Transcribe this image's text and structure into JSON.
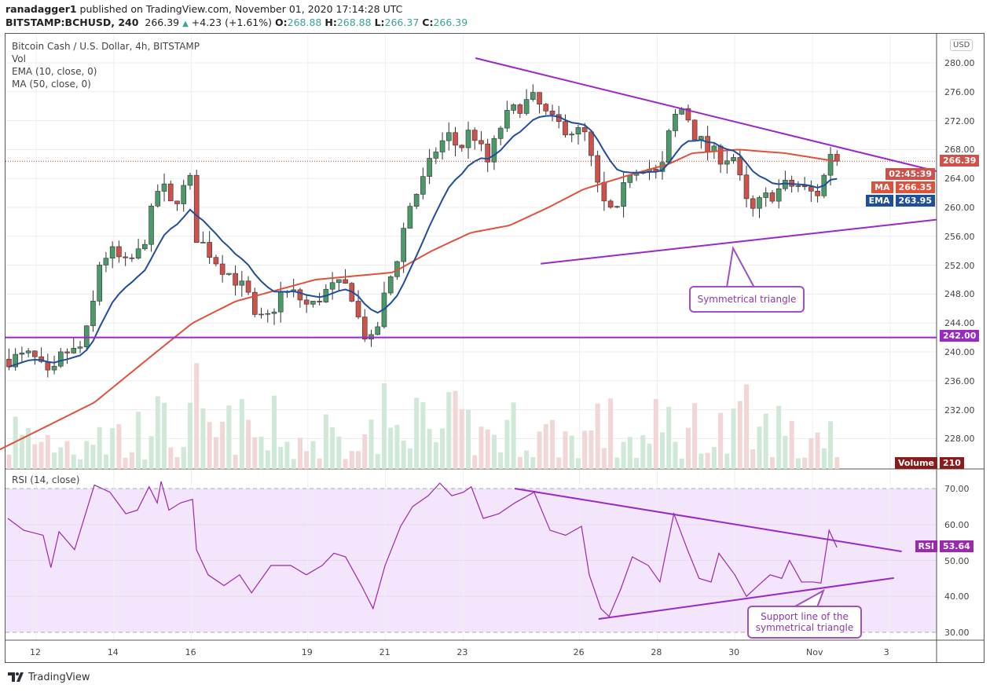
{
  "header": {
    "publisher": "ranadagger1",
    "published_text": "published on TradingView.com, November 01, 2020 17:14:28 UTC",
    "symbol": "BITSTAMP:BCHUSD, 240",
    "last": "266.39",
    "change": "+4.23 (+1.61%)",
    "o_label": "O:",
    "o": "268.88",
    "h_label": "H:",
    "h": "268.88",
    "l_label": "L:",
    "l": "266.37",
    "c_label": "C:",
    "c": "266.39"
  },
  "legend": [
    "Bitcoin Cash / U.S. Dollar, 4h, BITSTAMP",
    "Vol",
    "EMA (10, close, 0)",
    "MA (50, close, 0)"
  ],
  "rsi_legend": "RSI (14, close)",
  "currency": "USD",
  "labels": {
    "price": "266.39",
    "countdown": "02:45:39",
    "ma_name": "MA",
    "ma": "266.35",
    "ema_name": "EMA",
    "ema": "263.95",
    "support": "242.00",
    "vol_name": "Volume",
    "vol": "210",
    "rsi_name": "RSI",
    "rsi": "53.64"
  },
  "annotations": {
    "triangle": "Symmetrical triangle",
    "support_line": "Support line of the symmetrical triangle"
  },
  "footer": {
    "brand": "TradingView"
  },
  "colors": {
    "up": "#4a9a6a",
    "down": "#d0504a",
    "ema": "#1f4e9a",
    "ma": "#e0513c",
    "trend": "#9c27c8",
    "rsi": "#9c27b0",
    "rsi_bg": "#f3e5fb"
  },
  "chart_data": {
    "type": "candlestick",
    "title": "Bitcoin Cash / U.S. Dollar, 4h, BITSTAMP",
    "price_ticks": [
      280,
      276,
      272,
      268,
      264,
      260,
      256,
      252,
      248,
      244,
      240,
      236,
      232,
      228
    ],
    "price_range": [
      225,
      284
    ],
    "rsi_ticks": [
      70,
      60,
      50,
      40,
      30
    ],
    "x_ticks": [
      {
        "day": 12,
        "label": "12"
      },
      {
        "day": 14,
        "label": "14"
      },
      {
        "day": 16,
        "label": "16"
      },
      {
        "day": 19,
        "label": "19"
      },
      {
        "day": 21,
        "label": "21"
      },
      {
        "day": 23,
        "label": "23"
      },
      {
        "day": 26,
        "label": "26"
      },
      {
        "day": 28,
        "label": "28"
      },
      {
        "day": 30,
        "label": "30"
      },
      {
        "day": 32,
        "label": "Nov"
      },
      {
        "day": 34,
        "label": "3"
      }
    ],
    "close_path": [
      [
        11.27,
        239
      ],
      [
        11.88,
        239.5
      ],
      [
        12.38,
        236
      ],
      [
        12.69,
        240
      ],
      [
        13.09,
        240
      ],
      [
        13.4,
        244
      ],
      [
        13.6,
        252
      ],
      [
        13.9,
        254
      ],
      [
        14.31,
        252
      ],
      [
        14.71,
        254
      ],
      [
        14.91,
        258
      ],
      [
        15.22,
        264
      ],
      [
        15.42,
        260
      ],
      [
        15.72,
        262
      ],
      [
        16.03,
        264
      ],
      [
        16.13,
        256
      ],
      [
        16.43,
        254
      ],
      [
        16.74,
        252
      ],
      [
        17.14,
        250
      ],
      [
        17.45,
        248
      ],
      [
        17.65,
        244
      ],
      [
        18.05,
        245
      ],
      [
        18.26,
        248
      ],
      [
        18.66,
        248
      ],
      [
        19.06,
        246
      ],
      [
        19.37,
        248
      ],
      [
        19.67,
        249
      ],
      [
        20.08,
        249
      ],
      [
        20.38,
        243
      ],
      [
        20.68,
        241
      ],
      [
        20.99,
        248
      ],
      [
        21.29,
        253
      ],
      [
        21.6,
        260
      ],
      [
        22.0,
        264
      ],
      [
        22.3,
        268
      ],
      [
        22.61,
        270
      ],
      [
        22.91,
        268
      ],
      [
        23.21,
        271
      ],
      [
        23.62,
        266
      ],
      [
        24.02,
        272
      ],
      [
        24.43,
        274
      ],
      [
        24.83,
        275
      ],
      [
        25.24,
        272
      ],
      [
        25.64,
        271
      ],
      [
        26.15,
        270
      ],
      [
        26.45,
        263
      ],
      [
        26.66,
        260
      ],
      [
        26.96,
        259
      ],
      [
        27.26,
        265
      ],
      [
        27.67,
        266
      ],
      [
        28.07,
        264
      ],
      [
        28.38,
        272
      ],
      [
        28.68,
        274
      ],
      [
        28.98,
        270
      ],
      [
        29.29,
        268
      ],
      [
        29.59,
        267
      ],
      [
        30.0,
        267
      ],
      [
        30.2,
        262
      ],
      [
        30.4,
        259
      ],
      [
        30.7,
        261
      ],
      [
        31.01,
        262
      ],
      [
        31.31,
        263
      ],
      [
        31.62,
        263
      ],
      [
        31.92,
        262
      ],
      [
        32.22,
        262
      ],
      [
        32.43,
        268
      ],
      [
        32.63,
        266.39
      ]
    ],
    "ma50_path": [
      [
        11.07,
        226.5
      ],
      [
        13.5,
        233
      ],
      [
        15.1,
        240
      ],
      [
        16.03,
        244
      ],
      [
        17.14,
        247
      ],
      [
        19.2,
        250
      ],
      [
        21.2,
        251
      ],
      [
        22.2,
        254
      ],
      [
        23.2,
        256.5
      ],
      [
        24.2,
        257.5
      ],
      [
        25.2,
        260
      ],
      [
        26.1,
        262.5
      ],
      [
        27.3,
        264.5
      ],
      [
        28.3,
        266
      ],
      [
        28.9,
        267.5
      ],
      [
        30.1,
        268
      ],
      [
        31.3,
        267.5
      ],
      [
        32.63,
        266.35
      ]
    ],
    "rsi_path": [
      [
        11.27,
        61.7
      ],
      [
        11.68,
        58.4
      ],
      [
        12.18,
        57
      ],
      [
        12.38,
        48
      ],
      [
        12.59,
        58
      ],
      [
        12.99,
        53
      ],
      [
        13.5,
        71
      ],
      [
        13.9,
        69
      ],
      [
        14.31,
        63
      ],
      [
        14.61,
        64
      ],
      [
        14.91,
        70.5
      ],
      [
        15.12,
        66
      ],
      [
        15.22,
        72
      ],
      [
        15.42,
        64
      ],
      [
        15.72,
        66
      ],
      [
        16.03,
        67
      ],
      [
        16.13,
        53
      ],
      [
        16.43,
        46
      ],
      [
        16.84,
        43
      ],
      [
        17.24,
        46
      ],
      [
        17.55,
        41
      ],
      [
        18.05,
        48.6
      ],
      [
        18.56,
        48.6
      ],
      [
        18.96,
        46
      ],
      [
        19.37,
        48.6
      ],
      [
        19.67,
        52
      ],
      [
        19.97,
        51
      ],
      [
        20.38,
        43
      ],
      [
        20.68,
        36.6
      ],
      [
        20.99,
        48.6
      ],
      [
        21.39,
        59.5
      ],
      [
        21.7,
        65
      ],
      [
        22.1,
        68
      ],
      [
        22.4,
        71.5
      ],
      [
        22.71,
        68
      ],
      [
        23.01,
        69
      ],
      [
        23.21,
        70.5
      ],
      [
        23.52,
        61.7
      ],
      [
        23.92,
        63
      ],
      [
        24.33,
        66
      ],
      [
        24.83,
        69
      ],
      [
        25.24,
        58.4
      ],
      [
        25.64,
        57
      ],
      [
        26.05,
        59.5
      ],
      [
        26.25,
        46
      ],
      [
        26.55,
        36.6
      ],
      [
        26.76,
        34.4
      ],
      [
        27.06,
        42
      ],
      [
        27.36,
        51
      ],
      [
        27.77,
        48.6
      ],
      [
        28.07,
        44
      ],
      [
        28.43,
        63
      ],
      [
        28.78,
        53
      ],
      [
        29.08,
        45
      ],
      [
        29.39,
        44
      ],
      [
        29.59,
        52
      ],
      [
        30.0,
        46
      ],
      [
        30.3,
        40
      ],
      [
        30.6,
        43
      ],
      [
        30.91,
        46
      ],
      [
        31.21,
        45
      ],
      [
        31.41,
        50
      ],
      [
        31.72,
        44
      ],
      [
        32.02,
        44
      ],
      [
        32.22,
        43.7
      ],
      [
        32.43,
        58.4
      ],
      [
        32.63,
        53.64
      ]
    ],
    "support_level": 242,
    "triangle_upper": [
      [
        23.32,
        280.65
      ],
      [
        35.2,
        265.0
      ]
    ],
    "triangle_lower": [
      [
        25.0,
        252.2
      ],
      [
        35.2,
        258.3
      ]
    ],
    "rsi_upper": [
      [
        24.33,
        70
      ],
      [
        34.3,
        52.5
      ]
    ],
    "rsi_lower": [
      [
        26.49,
        33.7
      ],
      [
        34.1,
        45.1
      ]
    ],
    "last_close": 266.39,
    "ema_last": 263.95,
    "ma_last": 266.35,
    "rsi_last": 53.64
  }
}
